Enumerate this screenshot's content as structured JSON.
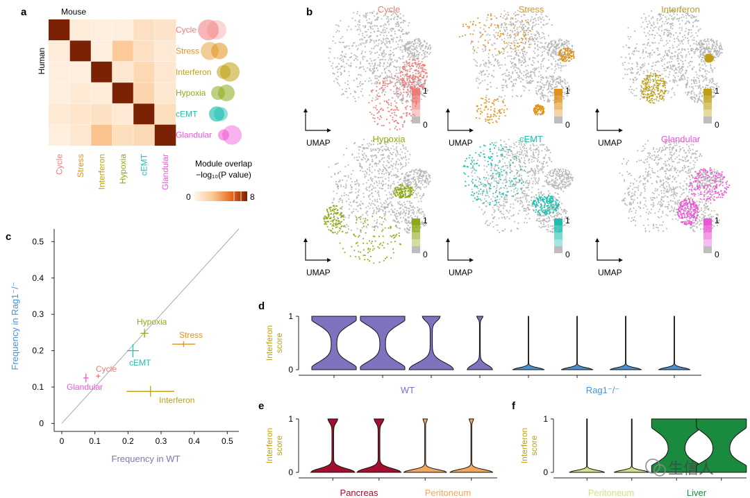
{
  "panels": {
    "a": "a",
    "b": "b",
    "c": "c",
    "d": "d",
    "e": "e",
    "f": "f"
  },
  "colors": {
    "Cycle": "#f07a78",
    "Stress": "#e0921a",
    "Interferon": "#bf9f12",
    "Hypoxia": "#8caa18",
    "cEMT": "#1fbfb0",
    "Glandular": "#ee55d6",
    "WT": "#7f73bf",
    "Rag1": "#4a90d2",
    "Pancreas": "#a3102e",
    "Peritoneum": "#f3a65e",
    "PeritoneumF": "#d2e08a",
    "Liver": "#198a3e",
    "axisD": "#bf9f12"
  },
  "panel_a": {
    "top_label": "Mouse",
    "side_label": "Human",
    "modules": [
      "Cycle",
      "Stress",
      "Interferon",
      "Hypoxia",
      "cEMT",
      "Glandular"
    ],
    "matrix": [
      [
        8,
        0.4,
        0.3,
        0.3,
        1.0,
        0.8
      ],
      [
        0.4,
        8,
        0.3,
        2.2,
        1.0,
        0.5
      ],
      [
        0.3,
        0.3,
        8,
        0.6,
        1.4,
        0.6
      ],
      [
        0.3,
        0.5,
        0.4,
        8,
        1.6,
        0.6
      ],
      [
        0.5,
        0.7,
        0.9,
        0.5,
        8,
        1.1
      ],
      [
        0.3,
        0.6,
        2.5,
        1.1,
        1.3,
        8
      ]
    ],
    "legend_title_line1": "Module overlap",
    "legend_title_line2": "−log₁₀(P value)",
    "legend_min": "0",
    "legend_max": "8"
  },
  "panel_b": {
    "umaps": [
      {
        "title": "Cycle",
        "axis": "UMAP",
        "scale_max": "1",
        "scale_min": "0"
      },
      {
        "title": "Stress",
        "axis": "UMAP",
        "scale_max": "1",
        "scale_min": "0"
      },
      {
        "title": "Interferon",
        "axis": "UMAP",
        "scale_max": "1",
        "scale_min": "0"
      },
      {
        "title": "Hypoxia",
        "axis": "UMAP",
        "scale_max": "1",
        "scale_min": "0"
      },
      {
        "title": "cEMT",
        "axis": "UMAP",
        "scale_max": "1",
        "scale_min": "0"
      },
      {
        "title": "Glandular",
        "axis": "UMAP",
        "scale_max": "1",
        "scale_min": "0"
      }
    ]
  },
  "chart_data": [
    {
      "type": "scatter",
      "panel": "c",
      "xlabel": "Frequency in WT",
      "ylabel": "Frequency in Rag1⁻/⁻",
      "xlim": [
        0,
        0.5
      ],
      "ylim": [
        0,
        0.5
      ],
      "xticks": [
        "0",
        "0.1",
        "0.2",
        "0.3",
        "0.4",
        "0.5"
      ],
      "yticks": [
        "0",
        "0.1",
        "0.2",
        "0.3",
        "0.4",
        "0.5"
      ],
      "diagonal": true,
      "points": [
        {
          "name": "Cycle",
          "x": 0.11,
          "y": 0.13,
          "xerr": 0.005,
          "yerr": 0.003
        },
        {
          "name": "Glandular",
          "x": 0.073,
          "y": 0.125,
          "xerr": 0.008,
          "yerr": 0.012
        },
        {
          "name": "cEMT",
          "x": 0.215,
          "y": 0.2,
          "xerr": 0.018,
          "yerr": 0.018
        },
        {
          "name": "Hypoxia",
          "x": 0.25,
          "y": 0.248,
          "xerr": 0.012,
          "yerr": 0.012
        },
        {
          "name": "Stress",
          "x": 0.368,
          "y": 0.218,
          "xerr": 0.035,
          "yerr": 0.008
        },
        {
          "name": "Interferon",
          "x": 0.268,
          "y": 0.088,
          "xerr": 0.072,
          "yerr": 0.015
        }
      ]
    },
    {
      "type": "violin",
      "panel": "d",
      "ylabel": "Interferon score",
      "yticks": [
        "1",
        "0"
      ],
      "group_labels": [
        "WT",
        "Rag1⁻/⁻"
      ],
      "violins": [
        {
          "group": "WT",
          "shape": "bimodal"
        },
        {
          "group": "WT",
          "shape": "bimodal"
        },
        {
          "group": "WT",
          "shape": "mostlyLow"
        },
        {
          "group": "WT",
          "shape": "low"
        },
        {
          "group": "Rag1",
          "shape": "flat"
        },
        {
          "group": "Rag1",
          "shape": "flat"
        },
        {
          "group": "Rag1",
          "shape": "flat"
        },
        {
          "group": "Rag1",
          "shape": "flat"
        }
      ]
    },
    {
      "type": "violin",
      "panel": "e",
      "ylabel": "Interferon score",
      "yticks": [
        "1",
        "0"
      ],
      "group_labels": [
        "Pancreas",
        "Peritoneum"
      ],
      "violins": [
        {
          "group": "Pancreas",
          "shape": "spike"
        },
        {
          "group": "Pancreas",
          "shape": "spike"
        },
        {
          "group": "Peritoneum",
          "shape": "lowSpike"
        },
        {
          "group": "Peritoneum",
          "shape": "lowSpike"
        }
      ]
    },
    {
      "type": "violin",
      "panel": "f",
      "ylabel": "Interferon score",
      "yticks": [
        "1",
        "0"
      ],
      "group_labels": [
        "Peritoneum",
        "Liver"
      ],
      "violins": [
        {
          "group": "PeritoneumF",
          "shape": "flat"
        },
        {
          "group": "PeritoneumF",
          "shape": "flat"
        },
        {
          "group": "Liver",
          "shape": "hourglass"
        },
        {
          "group": "Liver",
          "shape": "hourglass"
        }
      ]
    }
  ],
  "watermark": "生信人"
}
